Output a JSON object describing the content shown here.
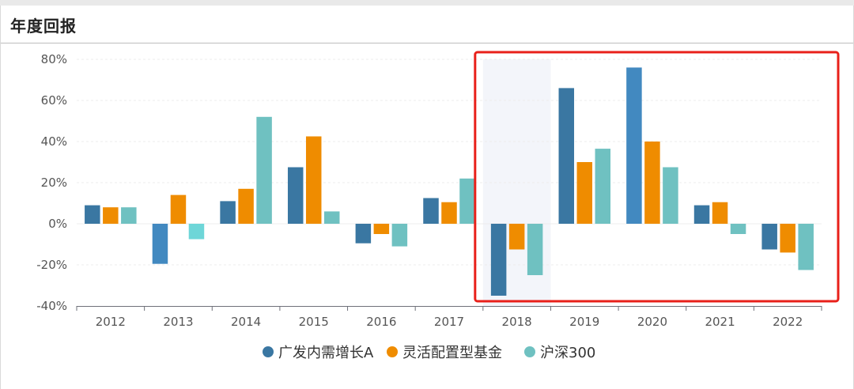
{
  "panel": {
    "title": "年度回报"
  },
  "chart_data": {
    "type": "bar",
    "categories": [
      "2012",
      "2013",
      "2014",
      "2015",
      "2016",
      "2017",
      "2018",
      "2019",
      "2020",
      "2021",
      "2022"
    ],
    "series": [
      {
        "name": "广发内需增长A",
        "color": "#3a77a2",
        "values": [
          9,
          -19.5,
          11,
          27.5,
          -9.5,
          12.5,
          -35,
          66,
          76,
          9,
          -12.5
        ]
      },
      {
        "name": "灵活配置型基金",
        "color": "#ef8c00",
        "values": [
          8,
          14,
          17,
          42.5,
          -5,
          10.5,
          -12.5,
          30,
          40,
          10.5,
          -14
        ]
      },
      {
        "name": "沪深300",
        "color": "#6fc1c1",
        "values": [
          8,
          -7.5,
          52,
          6,
          -11,
          22,
          -25,
          36.5,
          27.5,
          -5,
          -22.5
        ]
      }
    ],
    "title": "",
    "xlabel": "",
    "ylabel": "",
    "ylim": [
      -40,
      80
    ],
    "yticks": [
      "-40%",
      "-20%",
      "0%",
      "20%",
      "40%",
      "60%",
      "80%"
    ],
    "legend_position": "bottom",
    "highlighted_category": "2018",
    "highlight_box": {
      "from": "2018",
      "to": "2022",
      "color": "#e8201a"
    },
    "grid": true
  }
}
